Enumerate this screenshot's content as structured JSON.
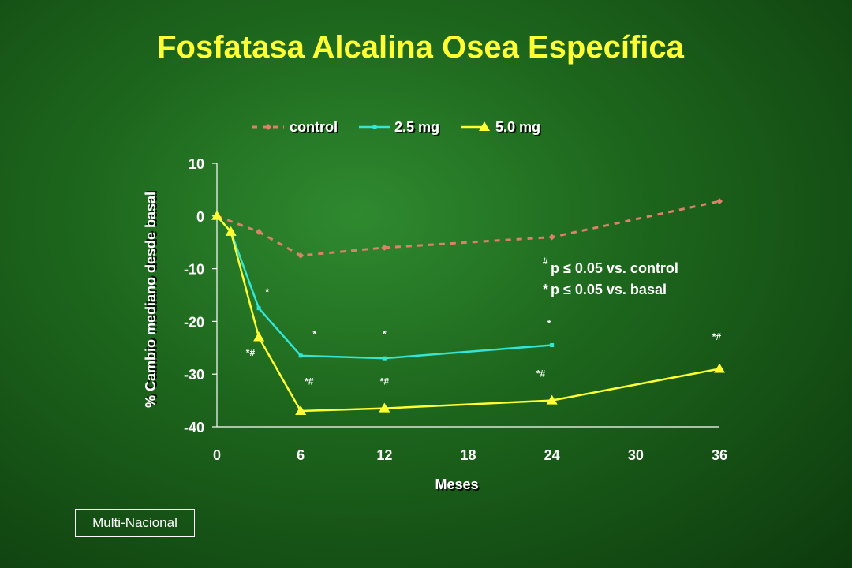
{
  "slide": {
    "title": "Fosfatasa Alcalina Osea Específica",
    "footer_label": "Multi-Nacional"
  },
  "chart_data": {
    "type": "line",
    "xlabel": "Meses",
    "ylabel": "% Cambio mediano desde basal",
    "xlim": [
      0,
      36
    ],
    "ylim": [
      -40,
      10
    ],
    "x_ticks": [
      0,
      6,
      12,
      18,
      24,
      30,
      36
    ],
    "y_ticks": [
      10,
      0,
      -10,
      -20,
      -30,
      -40
    ],
    "grid": false,
    "legend_position": "top",
    "series": [
      {
        "name": "control",
        "color": "#e0806a",
        "line_style": "dashed",
        "marker": "diamond",
        "x": [
          0,
          3,
          6,
          12,
          24,
          36
        ],
        "y": [
          0,
          -3,
          -7.5,
          -6,
          -4,
          2.8
        ]
      },
      {
        "name": "2.5 mg",
        "color": "#33e6d6",
        "line_style": "solid",
        "marker": "square",
        "x": [
          0,
          1,
          3,
          6,
          12,
          24
        ],
        "y": [
          0,
          -3,
          -17.5,
          -26.5,
          -27,
          -24.5
        ]
      },
      {
        "name": "5.0 mg",
        "color": "#ffff33",
        "line_style": "solid",
        "marker": "triangle",
        "x": [
          0,
          1,
          3,
          6,
          12,
          24,
          36
        ],
        "y": [
          0,
          -3,
          -23,
          -37,
          -36.5,
          -35,
          -29
        ]
      }
    ],
    "annotations": [
      {
        "text": "*",
        "x": 3.6,
        "y": -15
      },
      {
        "text": "*",
        "x": 7,
        "y": -23
      },
      {
        "text": "*",
        "x": 12,
        "y": -23
      },
      {
        "text": "*",
        "x": 23.8,
        "y": -21
      },
      {
        "text": "*#",
        "x": 2.4,
        "y": -26.5
      },
      {
        "text": "*#",
        "x": 6.6,
        "y": -32
      },
      {
        "text": "*#",
        "x": 12,
        "y": -32
      },
      {
        "text": "*#",
        "x": 23.2,
        "y": -30.5
      },
      {
        "text": "*#",
        "x": 35.8,
        "y": -23.5
      }
    ],
    "significance_notes": [
      {
        "symbol": "#",
        "text": "p  ≤  0.05 vs. control"
      },
      {
        "symbol": "*",
        "text": " p  ≤  0.05 vs. basal"
      }
    ]
  }
}
